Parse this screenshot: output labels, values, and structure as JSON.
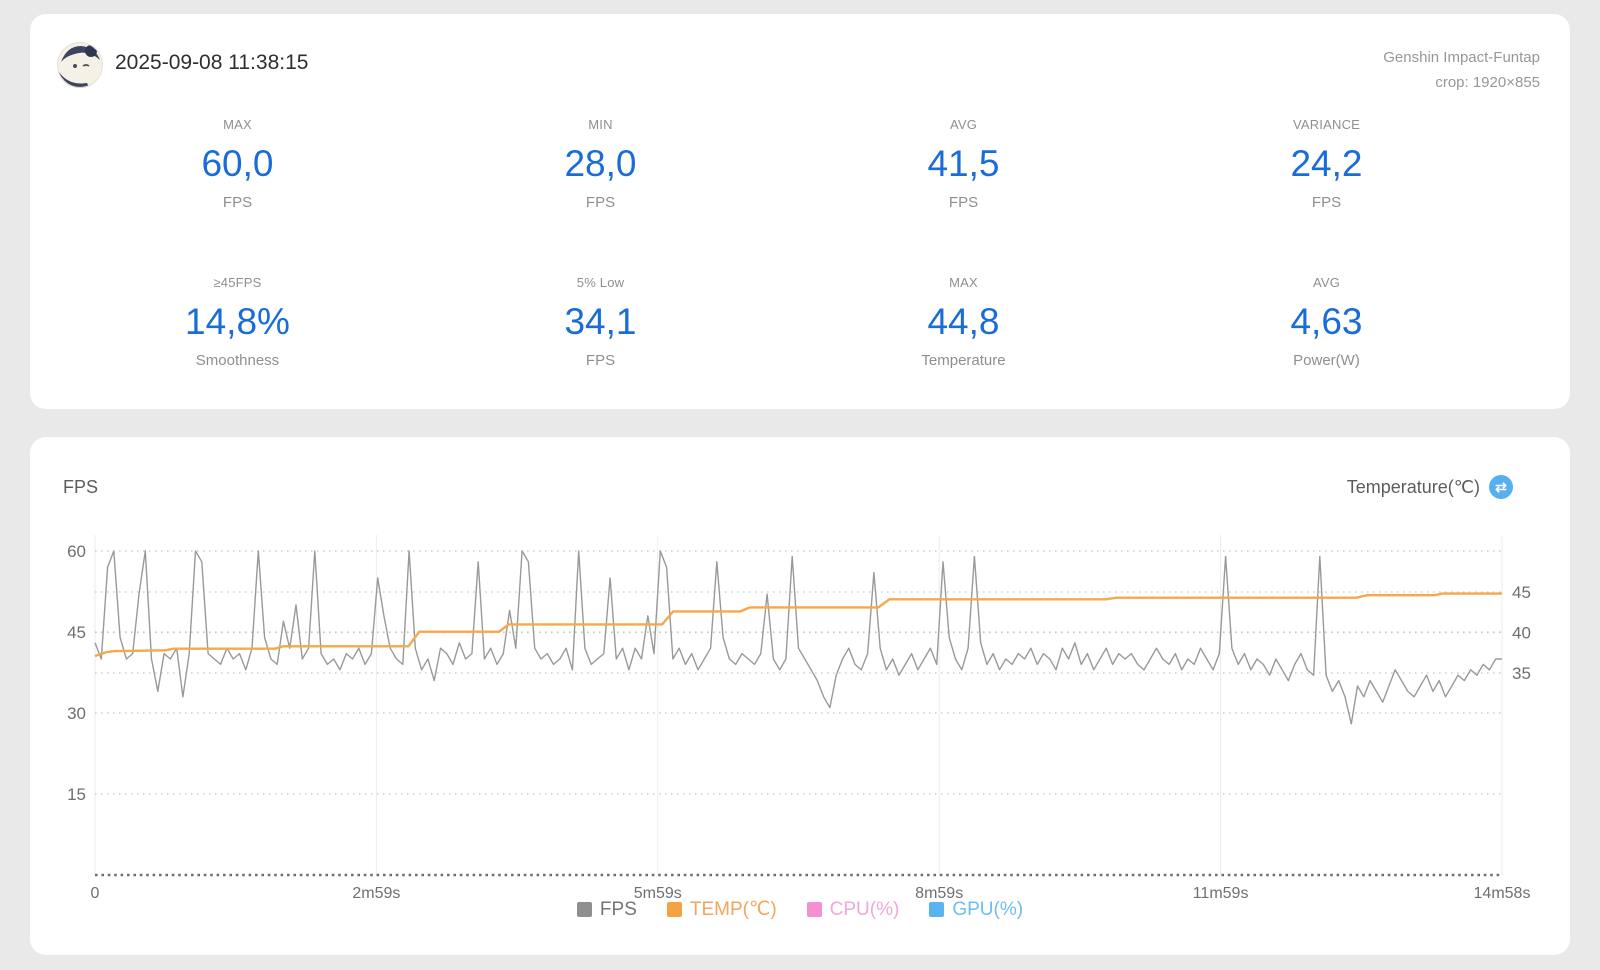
{
  "header": {
    "timestamp": "2025-09-08 11:38:15",
    "app_title": "Genshin Impact-Funtap",
    "crop_info": "crop: 1920×855",
    "avatar_alt": "paimon-avatar"
  },
  "stats": [
    {
      "label": "MAX",
      "value": "60,0",
      "unit": "FPS"
    },
    {
      "label": "MIN",
      "value": "28,0",
      "unit": "FPS"
    },
    {
      "label": "AVG",
      "value": "41,5",
      "unit": "FPS"
    },
    {
      "label": "VARIANCE",
      "value": "24,2",
      "unit": "FPS"
    },
    {
      "label": "≥45FPS",
      "value": "14,8%",
      "unit": "Smoothness"
    },
    {
      "label": "5% Low",
      "value": "34,1",
      "unit": "FPS"
    },
    {
      "label": "MAX",
      "value": "44,8",
      "unit": "Temperature"
    },
    {
      "label": "AVG",
      "value": "4,63",
      "unit": "Power(W)"
    }
  ],
  "colors": {
    "stat_value_blue": "#1a6cd8",
    "fps_line": "#999999",
    "temp_line": "#f5a84c",
    "cpu_pink": "#f48fd0",
    "gpu_blue": "#59b3ee",
    "grid_dotted": "#c6c6c6",
    "axis_dotted": "#707070"
  },
  "chart_data": {
    "type": "line",
    "left_axis_title": "FPS",
    "right_axis_title": "Temperature(℃)",
    "swap_icon_glyph": "⇄",
    "x_axis": {
      "labels": [
        "0",
        "2m59s",
        "5m59s",
        "8m59s",
        "11m59s",
        "14m58s"
      ],
      "duration_s": 898,
      "grid": true
    },
    "y_left": {
      "label": "FPS",
      "ticks": [
        60,
        45,
        30,
        15
      ],
      "min": 0,
      "max": 62,
      "grid": "dotted"
    },
    "y_right": {
      "label": "Temperature(℃)",
      "ticks": [
        45,
        40,
        35
      ],
      "grid": "dotted"
    },
    "legend": [
      {
        "name": "FPS",
        "color": "#8f8f8f",
        "text_color": "#757575"
      },
      {
        "name": "TEMP(℃)",
        "color": "#f5a342",
        "text_color": "#f2a55c"
      },
      {
        "name": "CPU(%)",
        "color": "#f48fd0",
        "text_color": "#f3a6da"
      },
      {
        "name": "GPU(%)",
        "color": "#59b3ee",
        "text_color": "#6fbcef"
      }
    ],
    "series": [
      {
        "name": "FPS",
        "axis": "left",
        "color": "#999999",
        "sampling": "evenly spaced over duration_s",
        "values": [
          43,
          40,
          57,
          60,
          44,
          40,
          41,
          52,
          60,
          40,
          34,
          41,
          40,
          42,
          33,
          41,
          60,
          58,
          41,
          40,
          39,
          42,
          40,
          41,
          38,
          42,
          60,
          44,
          40,
          39,
          47,
          42,
          50,
          40,
          42,
          60,
          41,
          39,
          40,
          38,
          41,
          40,
          42,
          39,
          41,
          55,
          48,
          42,
          40,
          39,
          60,
          42,
          38,
          40,
          36,
          42,
          41,
          39,
          43,
          40,
          41,
          58,
          40,
          42,
          39,
          41,
          49,
          42,
          60,
          58,
          42,
          40,
          41,
          39,
          40,
          42,
          38,
          60,
          42,
          39,
          40,
          41,
          55,
          40,
          42,
          38,
          42,
          40,
          48,
          41,
          60,
          57,
          40,
          42,
          39,
          41,
          38,
          40,
          42,
          58,
          44,
          40,
          39,
          41,
          40,
          39,
          41,
          52,
          40,
          38,
          40,
          59,
          42,
          40,
          38,
          36,
          33,
          31,
          37,
          40,
          42,
          39,
          38,
          41,
          56,
          42,
          38,
          40,
          37,
          39,
          41,
          38,
          40,
          42,
          39,
          58,
          44,
          40,
          38,
          42,
          59,
          43,
          39,
          41,
          38,
          40,
          39,
          41,
          40,
          42,
          39,
          41,
          40,
          38,
          42,
          40,
          43,
          39,
          41,
          38,
          40,
          42,
          39,
          41,
          40,
          41,
          39,
          38,
          40,
          42,
          40,
          39,
          41,
          38,
          40,
          39,
          42,
          40,
          38,
          41,
          59,
          42,
          39,
          41,
          38,
          40,
          39,
          37,
          40,
          38,
          36,
          39,
          41,
          38,
          37,
          59,
          37,
          34,
          36,
          33,
          28,
          35,
          33,
          36,
          34,
          32,
          35,
          38,
          36,
          34,
          33,
          35,
          37,
          34,
          36,
          33,
          35,
          37,
          36,
          38,
          37,
          39,
          38,
          40,
          40
        ]
      },
      {
        "name": "TEMP(℃)",
        "axis": "right",
        "color": "#f5a84c",
        "points_t_v": [
          [
            0,
            37.1
          ],
          [
            8,
            37.6
          ],
          [
            13,
            37.7
          ],
          [
            45,
            37.8
          ],
          [
            50,
            38.0
          ],
          [
            115,
            38.0
          ],
          [
            120,
            38.3
          ],
          [
            200,
            38.3
          ],
          [
            207,
            40.1
          ],
          [
            258,
            40.1
          ],
          [
            264,
            41.0
          ],
          [
            362,
            41.0
          ],
          [
            369,
            42.6
          ],
          [
            412,
            42.6
          ],
          [
            418,
            43.1
          ],
          [
            500,
            43.1
          ],
          [
            507,
            44.1
          ],
          [
            645,
            44.1
          ],
          [
            652,
            44.3
          ],
          [
            805,
            44.3
          ],
          [
            812,
            44.6
          ],
          [
            855,
            44.6
          ],
          [
            860,
            44.8
          ],
          [
            898,
            44.8
          ]
        ]
      },
      {
        "name": "CPU(%)",
        "axis": "right",
        "color": "#f48fd0",
        "values": []
      },
      {
        "name": "GPU(%)",
        "axis": "right",
        "color": "#59b3ee",
        "values": []
      }
    ]
  }
}
